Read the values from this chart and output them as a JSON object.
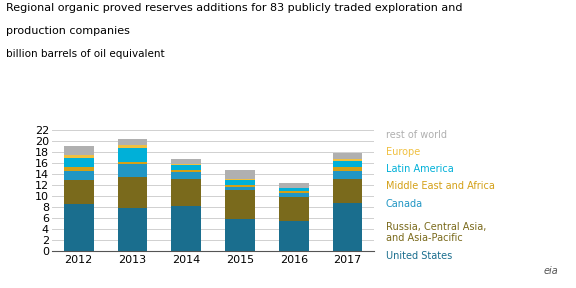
{
  "years": [
    "2012",
    "2013",
    "2014",
    "2015",
    "2016",
    "2017"
  ],
  "title_line1": "Regional organic proved reserves additions for 83 publicly traded exploration and",
  "title_line2": "production companies",
  "subtitle": "billion barrels of oil equivalent",
  "ylim": [
    0,
    22
  ],
  "yticks": [
    0,
    2,
    4,
    6,
    8,
    10,
    12,
    14,
    16,
    18,
    20,
    22
  ],
  "series": [
    {
      "label": "United States",
      "color": "#1a6e8e",
      "values": [
        8.4,
        7.8,
        8.1,
        5.7,
        5.4,
        8.6
      ]
    },
    {
      "label": "Russia, Central Asia,\nand Asia-Pacific",
      "color": "#7a6a1c",
      "values": [
        4.5,
        5.6,
        5.0,
        5.3,
        4.3,
        4.5
      ]
    },
    {
      "label": "Canada",
      "color": "#2196c4",
      "values": [
        1.5,
        2.4,
        1.2,
        0.6,
        0.8,
        1.4
      ]
    },
    {
      "label": "Middle East and Africa",
      "color": "#d4a017",
      "values": [
        0.8,
        0.3,
        0.4,
        0.4,
        0.4,
        0.7
      ]
    },
    {
      "label": "Latin America",
      "color": "#00b0d8",
      "values": [
        1.7,
        2.5,
        0.8,
        0.8,
        0.4,
        1.1
      ]
    },
    {
      "label": "Europe",
      "color": "#f0c040",
      "values": [
        0.5,
        0.6,
        0.2,
        0.3,
        0.1,
        0.3
      ]
    },
    {
      "label": "rest of world",
      "color": "#b0b0b0",
      "values": [
        1.7,
        1.0,
        0.9,
        1.6,
        0.9,
        1.1
      ]
    }
  ],
  "legend_display": [
    {
      "label": "rest of world",
      "color": "#b0b0b0"
    },
    {
      "label": "Europe",
      "color": "#f0c040"
    },
    {
      "label": "Latin America",
      "color": "#00b0d8"
    },
    {
      "label": "Middle East and Africa",
      "color": "#d4a017"
    },
    {
      "label": "Canada",
      "color": "#2196c4"
    },
    {
      "label": "Russia, Central Asia,\nand Asia-Pacific",
      "color": "#7a6a1c"
    },
    {
      "label": "United States",
      "color": "#1a6e8e"
    }
  ],
  "background_color": "#ffffff",
  "grid_color": "#d0d0d0",
  "title_fontsize": 8.0,
  "subtitle_fontsize": 7.5,
  "tick_fontsize": 8,
  "legend_fontsize": 7.0
}
